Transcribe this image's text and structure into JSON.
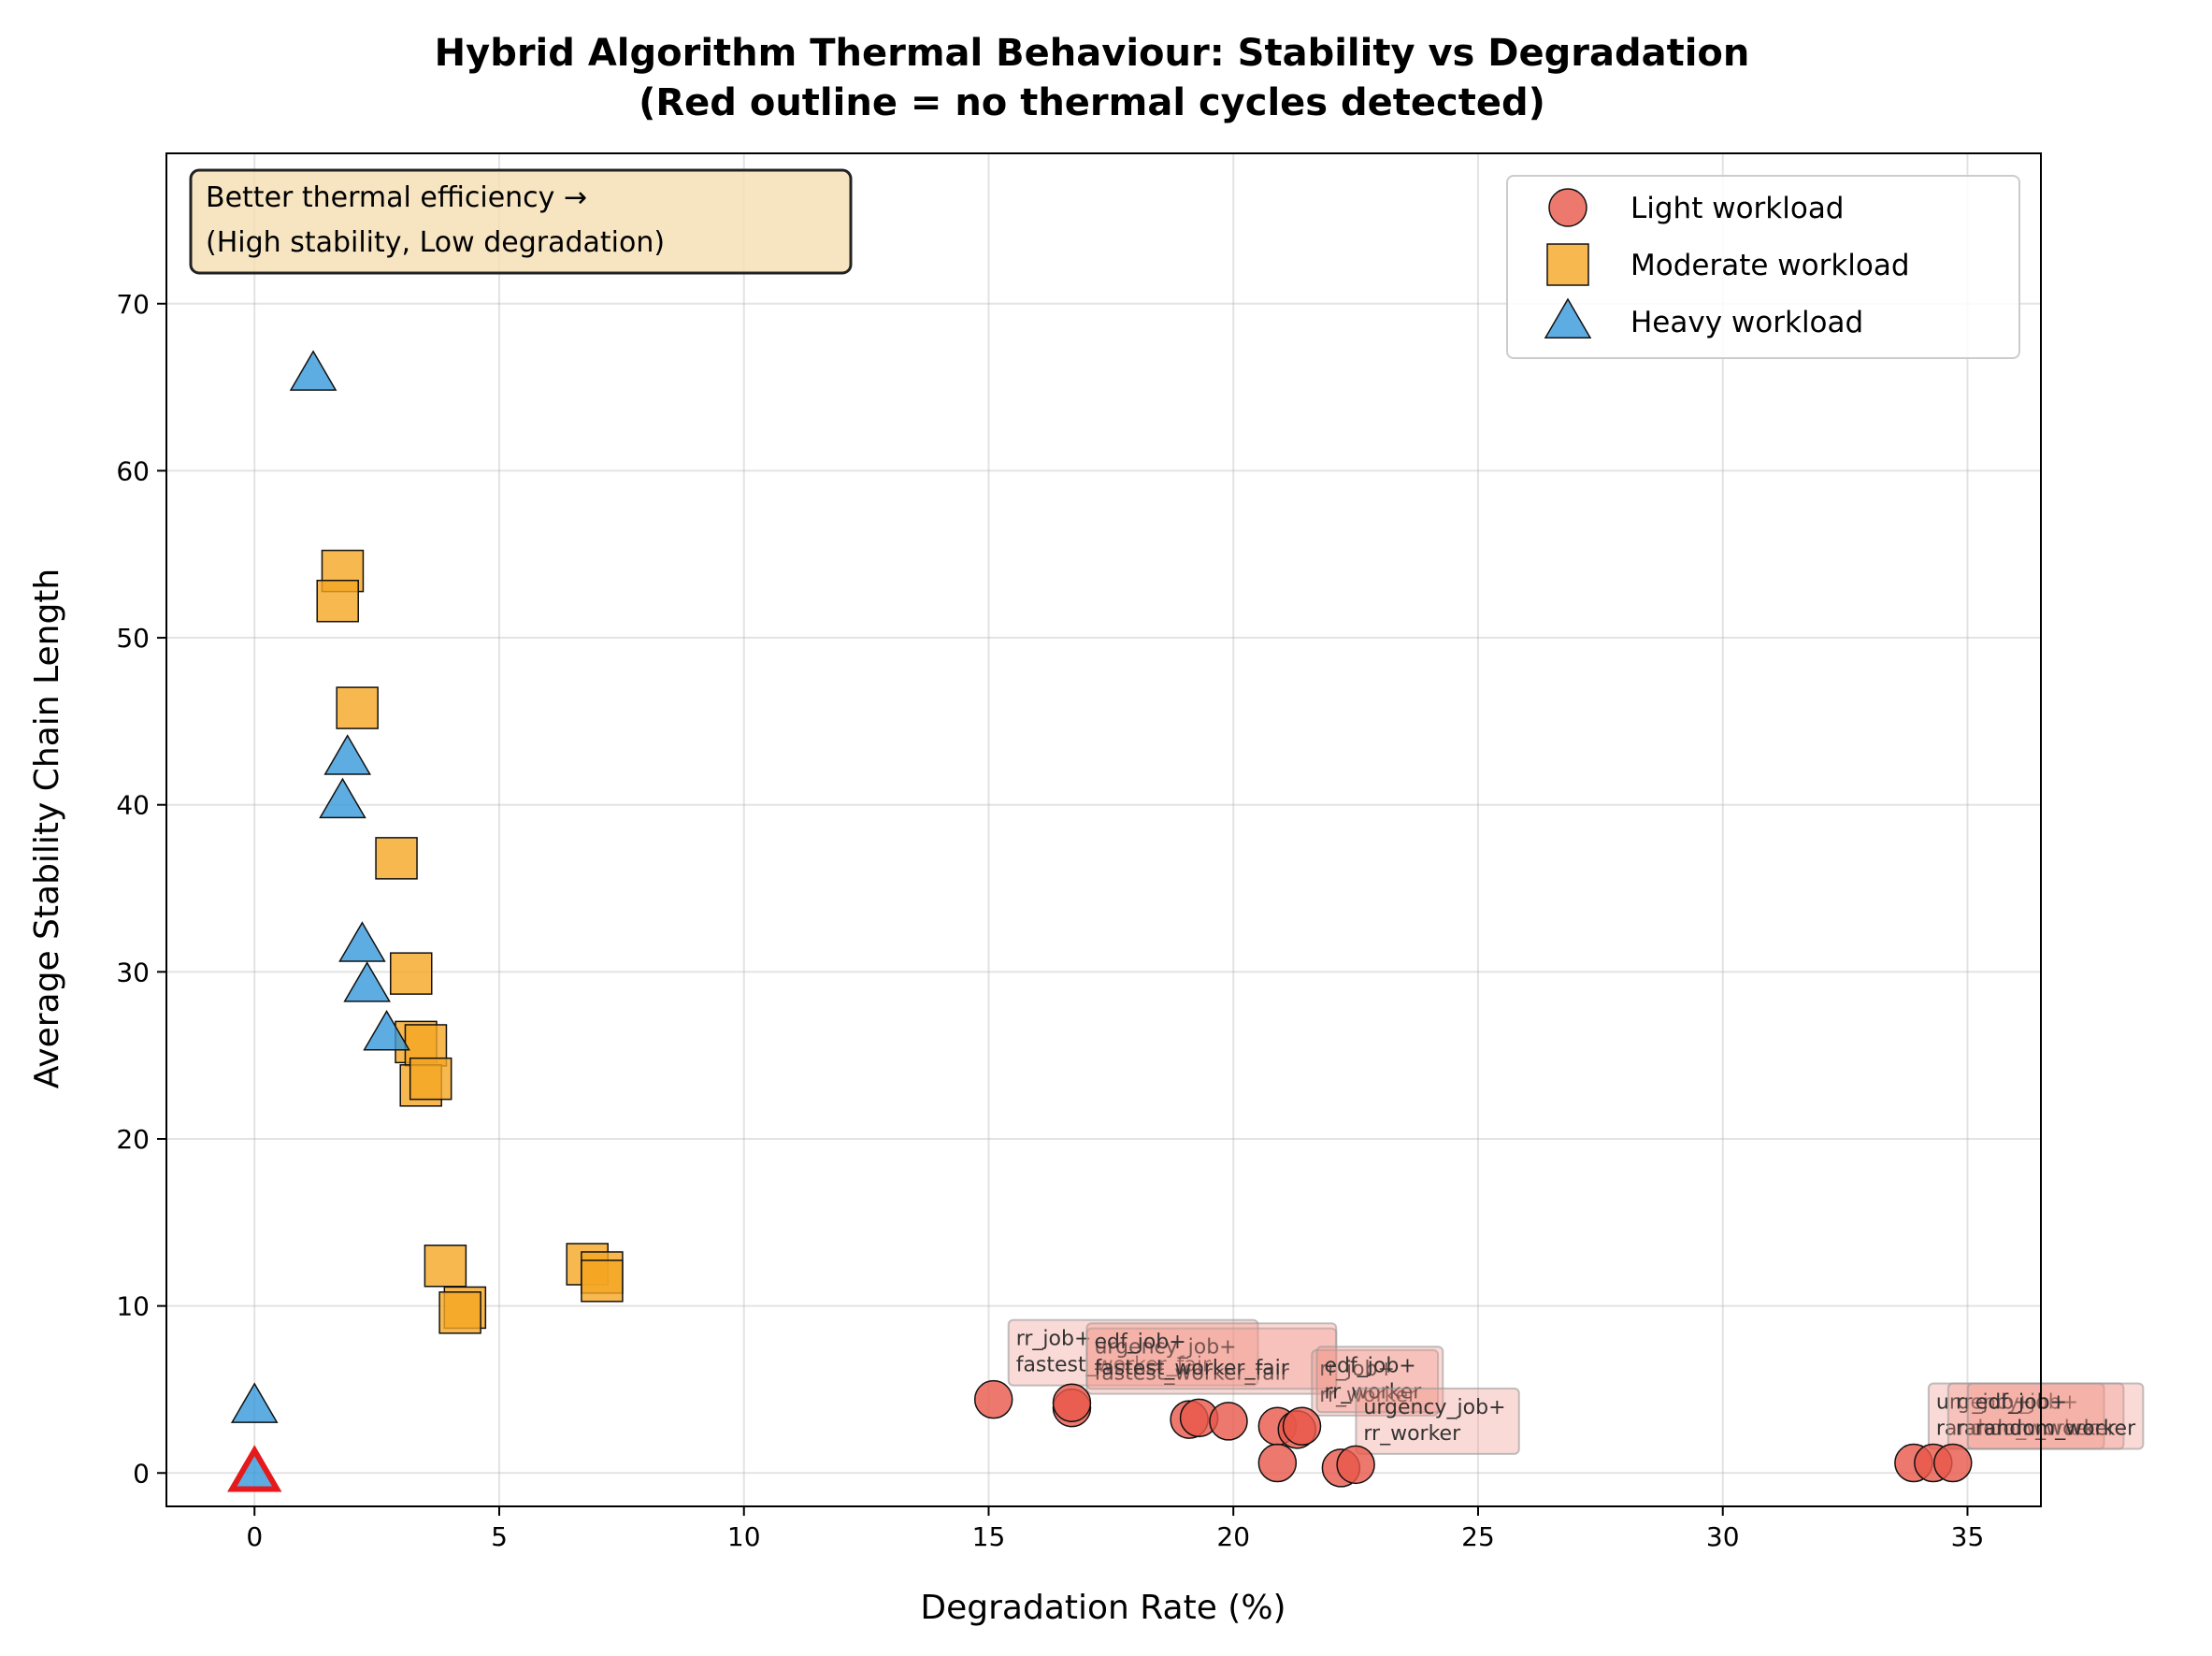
{
  "chart_data": {
    "type": "scatter",
    "title": "Hybrid Algorithm Thermal Behaviour: Stability vs Degradation",
    "subtitle": "(Red outline = no thermal cycles detected)",
    "xlabel": "Degradation Rate (%)",
    "ylabel": "Average Stability Chain Length",
    "xlim": [
      -1.8,
      36.5
    ],
    "ylim": [
      -2,
      79
    ],
    "xticks": [
      0,
      5,
      10,
      15,
      20,
      25,
      30,
      35
    ],
    "yticks": [
      0,
      10,
      20,
      30,
      40,
      50,
      60,
      70
    ],
    "grid": true,
    "legend_position": "top-right",
    "note": [
      "Better thermal efficiency →",
      "(High stability, Low degradation)"
    ],
    "series": [
      {
        "name": "Light workload",
        "marker": "circle",
        "color": "#e8584a",
        "points": [
          {
            "x": 15.1,
            "y": 4.4
          },
          {
            "x": 16.7,
            "y": 3.9
          },
          {
            "x": 16.7,
            "y": 4.2
          },
          {
            "x": 19.1,
            "y": 3.2
          },
          {
            "x": 19.3,
            "y": 3.3
          },
          {
            "x": 19.9,
            "y": 3.1
          },
          {
            "x": 20.9,
            "y": 2.8
          },
          {
            "x": 21.3,
            "y": 2.6
          },
          {
            "x": 21.4,
            "y": 2.8
          },
          {
            "x": 20.9,
            "y": 0.6
          },
          {
            "x": 22.2,
            "y": 0.3
          },
          {
            "x": 22.5,
            "y": 0.5
          },
          {
            "x": 33.9,
            "y": 0.6
          },
          {
            "x": 34.3,
            "y": 0.6
          },
          {
            "x": 34.7,
            "y": 0.6
          }
        ]
      },
      {
        "name": "Moderate workload",
        "marker": "square",
        "color": "#f5a623",
        "points": [
          {
            "x": 1.8,
            "y": 54.0
          },
          {
            "x": 1.7,
            "y": 52.2
          },
          {
            "x": 2.1,
            "y": 45.8
          },
          {
            "x": 2.9,
            "y": 36.8
          },
          {
            "x": 3.2,
            "y": 29.9
          },
          {
            "x": 3.3,
            "y": 25.8
          },
          {
            "x": 3.5,
            "y": 25.6
          },
          {
            "x": 3.4,
            "y": 23.2
          },
          {
            "x": 3.6,
            "y": 23.6
          },
          {
            "x": 3.9,
            "y": 12.4
          },
          {
            "x": 4.3,
            "y": 9.9
          },
          {
            "x": 4.2,
            "y": 9.6
          },
          {
            "x": 6.8,
            "y": 12.5
          },
          {
            "x": 7.1,
            "y": 12.0
          },
          {
            "x": 7.1,
            "y": 11.5
          }
        ]
      },
      {
        "name": "Heavy workload",
        "marker": "triangle",
        "color": "#3498db",
        "points": [
          {
            "x": 1.2,
            "y": 65.8
          },
          {
            "x": 1.9,
            "y": 42.8
          },
          {
            "x": 1.8,
            "y": 40.2
          },
          {
            "x": 2.2,
            "y": 31.6
          },
          {
            "x": 2.3,
            "y": 29.2
          },
          {
            "x": 2.7,
            "y": 26.3
          },
          {
            "x": 0.0,
            "y": 4.0
          },
          {
            "x": 0.0,
            "y": 0.0,
            "no_cycles": true
          }
        ]
      }
    ],
    "annotations": [
      {
        "x": 15.1,
        "y": 4.4,
        "lines": [
          "rr_job+",
          "fastest_worker_fair"
        ]
      },
      {
        "x": 16.7,
        "y": 3.9,
        "lines": [
          "urgency_job+",
          "fastest_worker_fair"
        ]
      },
      {
        "x": 16.7,
        "y": 4.2,
        "lines": [
          "edf_job+",
          "fastest_worker_fair"
        ]
      },
      {
        "x": 21.3,
        "y": 2.6,
        "lines": [
          "rr_job+",
          "rr_worker"
        ]
      },
      {
        "x": 21.4,
        "y": 2.8,
        "lines": [
          "edf_job+",
          "rr_worker"
        ]
      },
      {
        "x": 22.2,
        "y": 0.3,
        "lines": [
          "urgency_job+",
          "rr_worker"
        ]
      },
      {
        "x": 33.9,
        "y": 0.6,
        "lines": [
          "urgency_job+",
          "random_worker"
        ]
      },
      {
        "x": 34.3,
        "y": 0.6,
        "lines": [
          "rr_job+",
          "random_worker"
        ]
      },
      {
        "x": 34.7,
        "y": 0.6,
        "lines": [
          "edf_job+",
          "random_worker"
        ]
      }
    ]
  }
}
